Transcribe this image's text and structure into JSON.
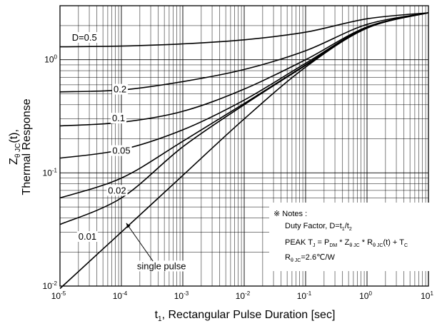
{
  "chart_data": {
    "type": "line",
    "title": "",
    "x_scale": "log",
    "y_scale": "log",
    "xlim": [
      1e-05,
      10
    ],
    "ylim": [
      0.01,
      3
    ],
    "grid": true,
    "legend": "none",
    "xlabel": {
      "prefix": "t",
      "sub": "1",
      "suffix": ", Rectangular Pulse Duration [sec]"
    },
    "ylabel": {
      "line1_prefix": "Z",
      "line1_sub": "θ JC",
      "line1_suffix": "(t),",
      "line2": "Thermal Response"
    },
    "x_ticks": [
      {
        "value": 1e-05,
        "base": "10",
        "exp": "-5"
      },
      {
        "value": 0.0001,
        "base": "10",
        "exp": "-4"
      },
      {
        "value": 0.001,
        "base": "10",
        "exp": "-3"
      },
      {
        "value": 0.01,
        "base": "10",
        "exp": "-2"
      },
      {
        "value": 0.1,
        "base": "10",
        "exp": "-1"
      },
      {
        "value": 1,
        "base": "10",
        "exp": "0"
      },
      {
        "value": 10,
        "base": "10",
        "exp": "1"
      }
    ],
    "y_ticks": [
      {
        "value": 0.01,
        "base": "10",
        "exp": "-2"
      },
      {
        "value": 0.1,
        "base": "10",
        "exp": "-1"
      },
      {
        "value": 1,
        "base": "10",
        "exp": "0"
      }
    ],
    "series": [
      {
        "name": "D=0.5",
        "label_x": 2.5e-05,
        "label_y": 1.55,
        "x": [
          1e-05,
          0.0001,
          0.001,
          0.01,
          0.1,
          1,
          10
        ],
        "y": [
          1.3,
          1.32,
          1.38,
          1.5,
          1.75,
          2.3,
          2.6
        ]
      },
      {
        "name": "0.2",
        "label_x": 9.5e-05,
        "label_y": 0.54,
        "x": [
          1e-05,
          0.0001,
          0.001,
          0.01,
          0.1,
          1,
          10
        ],
        "y": [
          0.52,
          0.54,
          0.64,
          0.82,
          1.2,
          2.05,
          2.6
        ]
      },
      {
        "name": "0.1",
        "label_x": 9e-05,
        "label_y": 0.3,
        "x": [
          1e-05,
          0.0001,
          0.001,
          0.01,
          0.1,
          1,
          10
        ],
        "y": [
          0.26,
          0.28,
          0.35,
          0.55,
          1.0,
          1.95,
          2.6
        ]
      },
      {
        "name": "0.05",
        "label_x": 0.0001,
        "label_y": 0.155,
        "x": [
          1e-05,
          0.0001,
          0.001,
          0.01,
          0.1,
          1,
          10
        ],
        "y": [
          0.135,
          0.16,
          0.24,
          0.44,
          0.93,
          1.93,
          2.6
        ]
      },
      {
        "name": "0.02",
        "label_x": 8.5e-05,
        "label_y": 0.069,
        "x": [
          1e-05,
          0.0001,
          0.001,
          0.01,
          0.1,
          1,
          10
        ],
        "y": [
          0.06,
          0.09,
          0.19,
          0.41,
          0.9,
          1.92,
          2.6
        ]
      },
      {
        "name": "0.01",
        "label_x": 2.8e-05,
        "label_y": 0.027,
        "x": [
          1e-05,
          0.0001,
          0.001,
          0.01,
          0.1,
          1,
          10
        ],
        "y": [
          0.035,
          0.06,
          0.17,
          0.4,
          0.89,
          1.91,
          2.6
        ]
      },
      {
        "name": "single pulse",
        "label_x": 0.00045,
        "label_y": 0.0148,
        "x": [
          1e-05,
          0.0001,
          0.001,
          0.01,
          0.1,
          1,
          10
        ],
        "y": [
          0.0095,
          0.03,
          0.095,
          0.3,
          0.86,
          1.9,
          2.6
        ]
      }
    ],
    "single_pulse_arrow_to": {
      "x": 0.00012,
      "y": 0.036
    },
    "notes": {
      "title": "※ Notes :",
      "duty_prefix": "Duty Factor, D=t",
      "duty_sub1": "1",
      "duty_mid": "/t",
      "duty_sub2": "2",
      "peak_prefix": "PEAK T",
      "peak_sub_j": "J",
      "peak_eq": " = P",
      "peak_sub_dm": "DM",
      "peak_mid1": " * Z",
      "peak_sub_zjc": "θ JC",
      "peak_mid2": " * R",
      "peak_sub_rjc": "θ JC",
      "peak_tail": "(t) + T",
      "peak_sub_c": "C",
      "r_prefix": "R",
      "r_sub": "θ JC",
      "r_value": "=2.6℃/W"
    }
  }
}
